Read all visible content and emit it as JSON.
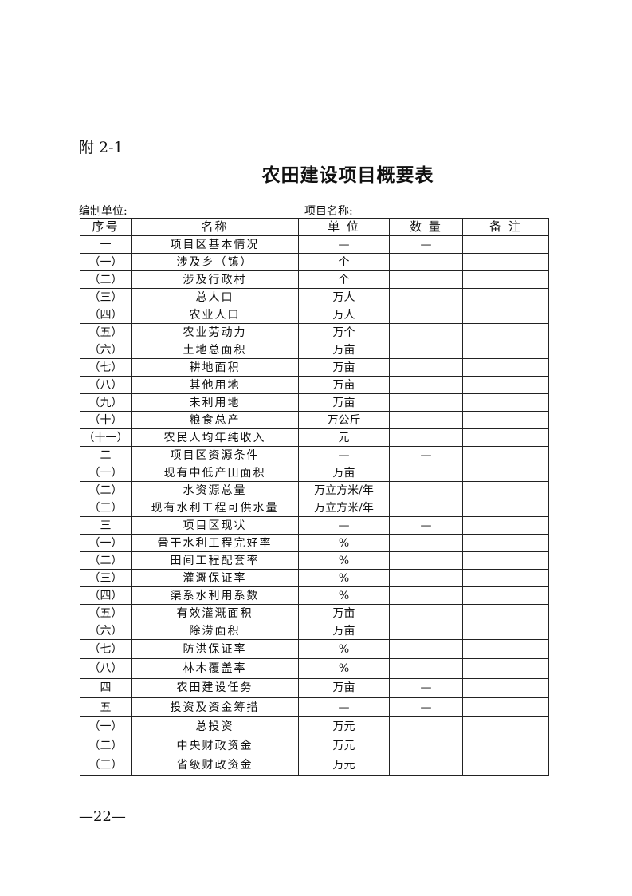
{
  "appendix_label": "附 2-1",
  "title": "农田建设项目概要表",
  "compiler_label": "编制单位:",
  "project_name_label": "项目名称:",
  "table": {
    "headers": [
      "序号",
      "名称",
      "单 位",
      "数 量",
      "备 注"
    ],
    "rows": [
      [
        "一",
        "项目区基本情况",
        "—",
        "—",
        ""
      ],
      [
        "（一）",
        "涉及乡（镇）",
        "个",
        "",
        ""
      ],
      [
        "（二）",
        "涉及行政村",
        "个",
        "",
        ""
      ],
      [
        "（三）",
        "总人口",
        "万人",
        "",
        ""
      ],
      [
        "（四）",
        "农业人口",
        "万人",
        "",
        ""
      ],
      [
        "（五）",
        "农业劳动力",
        "万个",
        "",
        ""
      ],
      [
        "（六）",
        "土地总面积",
        "万亩",
        "",
        ""
      ],
      [
        "（七）",
        "耕地面积",
        "万亩",
        "",
        ""
      ],
      [
        "（八）",
        "其他用地",
        "万亩",
        "",
        ""
      ],
      [
        "（九）",
        "未利用地",
        "万亩",
        "",
        ""
      ],
      [
        "（十）",
        "粮食总产",
        "万公斤",
        "",
        ""
      ],
      [
        "（十一）",
        "农民人均年纯收入",
        "元",
        "",
        ""
      ],
      [
        "二",
        "项目区资源条件",
        "—",
        "—",
        ""
      ],
      [
        "（一）",
        "现有中低产田面积",
        "万亩",
        "",
        ""
      ],
      [
        "（二）",
        "水资源总量",
        "万立方米/年",
        "",
        ""
      ],
      [
        "（三）",
        "现有水利工程可供水量",
        "万立方米/年",
        "",
        ""
      ],
      [
        "三",
        "项目区现状",
        "—",
        "—",
        ""
      ],
      [
        "（一）",
        "骨干水利工程完好率",
        "%",
        "",
        ""
      ],
      [
        "（二）",
        "田间工程配套率",
        "%",
        "",
        ""
      ],
      [
        "（三）",
        "灌溉保证率",
        "%",
        "",
        ""
      ],
      [
        "（四）",
        "渠系水利用系数",
        "%",
        "",
        ""
      ],
      [
        "（五）",
        "有效灌溉面积",
        "万亩",
        "",
        ""
      ],
      [
        "（六）",
        "除涝面积",
        "万亩",
        "",
        ""
      ],
      [
        "（七）",
        "防洪保证率",
        "%",
        "",
        ""
      ],
      [
        "（八）",
        "林木覆盖率",
        "%",
        "",
        ""
      ],
      [
        "四",
        "农田建设任务",
        "万亩",
        "—",
        ""
      ],
      [
        "五",
        "投资及资金筹措",
        "—",
        "—",
        ""
      ],
      [
        "（一）",
        "总投资",
        "万元",
        "",
        ""
      ],
      [
        "（二）",
        "中央财政资金",
        "万元",
        "",
        ""
      ],
      [
        "（三）",
        "省级财政资金",
        "万元",
        "",
        ""
      ]
    ]
  },
  "page_number": "—22—"
}
